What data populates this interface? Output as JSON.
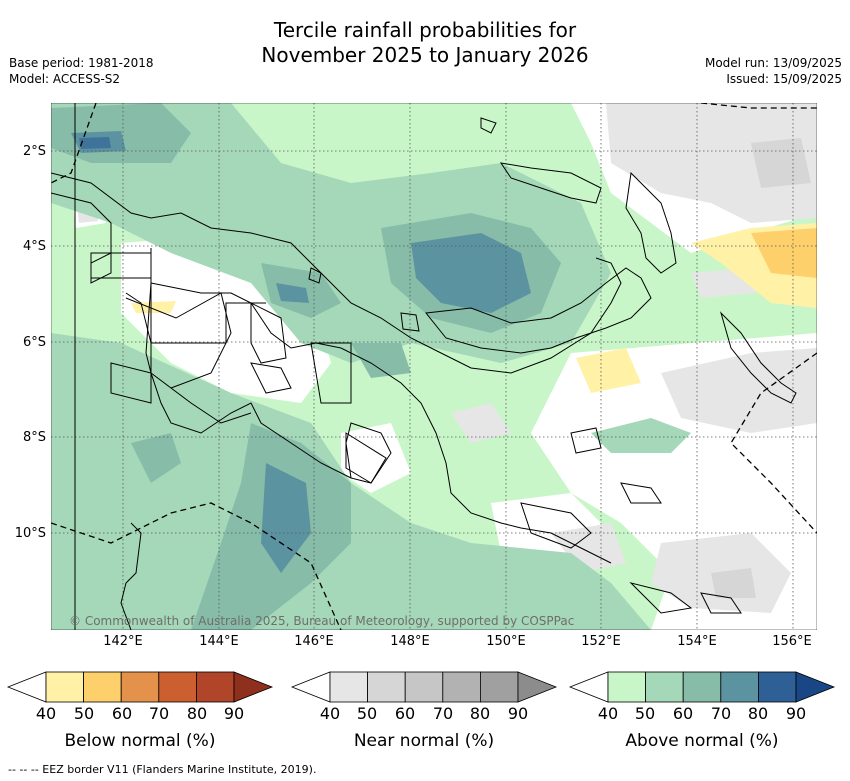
{
  "title_line1": "Tercile rainfall probabilities for",
  "title_line2": "November 2025 to January 2026",
  "meta": {
    "base_period": "Base period: 1981-2018",
    "model": "Model: ACCESS-S2",
    "model_run": "Model run: 13/09/2025",
    "issued": "Issued: 15/09/2025"
  },
  "map": {
    "credit": "© Commonwealth of Australia 2025, Bureau of Meteorology, supported by COSPPac",
    "lat_labels": [
      "2°S",
      "4°S",
      "6°S",
      "8°S",
      "10°S"
    ],
    "lon_labels": [
      "142°E",
      "144°E",
      "146°E",
      "148°E",
      "150°E",
      "152°E",
      "154°E",
      "156°E"
    ],
    "extent": {
      "lon_min": 140.5,
      "lon_max": 156.5,
      "lat_min": -12.0,
      "lat_max": -1.0
    }
  },
  "colorbars": [
    {
      "title": "Below normal (%)",
      "ticks": [
        "40",
        "50",
        "60",
        "70",
        "80",
        "90"
      ],
      "colors": [
        "#fff1a6",
        "#fdd06b",
        "#e4924b",
        "#cc5f30",
        "#b0452a",
        "#8f2f1d"
      ]
    },
    {
      "title": "Near normal (%)",
      "ticks": [
        "40",
        "50",
        "60",
        "70",
        "80",
        "90"
      ],
      "colors": [
        "#e6e6e6",
        "#d6d6d6",
        "#c6c6c6",
        "#b2b2b2",
        "#a0a0a0",
        "#8c8c8c"
      ]
    },
    {
      "title": "Above normal (%)",
      "ticks": [
        "40",
        "50",
        "60",
        "70",
        "80",
        "90"
      ],
      "colors": [
        "#c9f6c9",
        "#a5d8b8",
        "#87bca9",
        "#5c93a0",
        "#2e6096",
        "#194785"
      ]
    }
  ],
  "footer": "--  --  -- EEZ border V11 (Flanders Marine Institute, 2019).",
  "colors": {
    "above_50": "#c9f6c9",
    "above_60": "#a5d8b8",
    "above_70": "#87bca9",
    "above_80": "#5c93a0",
    "near_50": "#e6e6e6",
    "below_50": "#fff1a6",
    "below_60": "#fdd06b"
  }
}
